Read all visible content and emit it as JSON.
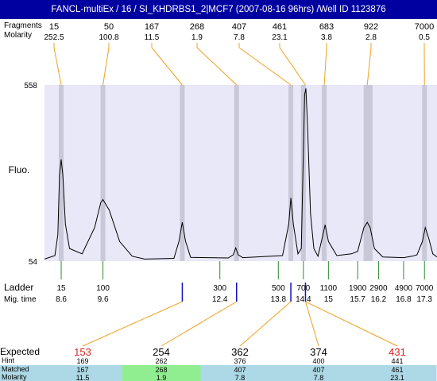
{
  "window": {
    "title": "FANCL-multiEx / 16 / SI_KHDRBS1_2|MCF7 (2007-08-16 96hrs) /Well ID 1123876"
  },
  "colors": {
    "title_bar": "#0000a0",
    "plot_bg": "#e8e8f8",
    "band": "#c8c8d8",
    "orange_line": "#f0a020",
    "green_tick": "#2e8b2e",
    "blue_tick": "#1010c0",
    "expected_highlight": "#e02020",
    "row_blue": "#add8e6",
    "row_green": "#90ee90"
  },
  "chart_data": {
    "type": "line",
    "ylabel": "Fluo.",
    "ylim": [
      54,
      558
    ],
    "y_ticks": [
      "558",
      "54"
    ],
    "top_header": {
      "row_labels": [
        "Fragments",
        "Molarity"
      ],
      "fragments": [
        "15",
        "50",
        "167",
        "268",
        "407",
        "461",
        "683",
        "922",
        "7000"
      ],
      "molarity": [
        "252.5",
        "100.8",
        "11.5",
        "1.9",
        "7.8",
        "23.1",
        "3.8",
        "2.8",
        "0.5"
      ]
    },
    "peaks_mig_time": [
      8.6,
      9.6,
      11.5,
      12.8,
      14.1,
      14.4,
      14.9,
      15.9,
      16.0,
      17.3
    ],
    "trace": [
      [
        8.2,
        60
      ],
      [
        8.45,
        70
      ],
      [
        8.52,
        130
      ],
      [
        8.56,
        300
      ],
      [
        8.6,
        345
      ],
      [
        8.64,
        300
      ],
      [
        8.7,
        160
      ],
      [
        8.8,
        90
      ],
      [
        9.1,
        75
      ],
      [
        9.4,
        150
      ],
      [
        9.55,
        222
      ],
      [
        9.6,
        230
      ],
      [
        9.75,
        200
      ],
      [
        10.0,
        110
      ],
      [
        10.3,
        68
      ],
      [
        10.6,
        60
      ],
      [
        11.3,
        62
      ],
      [
        11.42,
        110
      ],
      [
        11.5,
        165
      ],
      [
        11.58,
        110
      ],
      [
        11.7,
        65
      ],
      [
        12.6,
        63
      ],
      [
        12.72,
        72
      ],
      [
        12.78,
        92
      ],
      [
        12.84,
        72
      ],
      [
        12.95,
        64
      ],
      [
        13.9,
        70
      ],
      [
        14.05,
        160
      ],
      [
        14.1,
        235
      ],
      [
        14.16,
        160
      ],
      [
        14.27,
        75
      ],
      [
        14.35,
        90
      ],
      [
        14.43,
        530
      ],
      [
        14.46,
        548
      ],
      [
        14.5,
        440
      ],
      [
        14.57,
        190
      ],
      [
        14.65,
        90
      ],
      [
        14.75,
        68
      ],
      [
        14.85,
        120
      ],
      [
        14.92,
        158
      ],
      [
        15.0,
        110
      ],
      [
        15.2,
        70
      ],
      [
        15.55,
        75
      ],
      [
        15.7,
        82
      ],
      [
        15.85,
        150
      ],
      [
        15.93,
        165
      ],
      [
        16.0,
        150
      ],
      [
        16.1,
        90
      ],
      [
        16.3,
        66
      ],
      [
        16.8,
        64
      ],
      [
        17.0,
        68
      ],
      [
        17.12,
        72
      ],
      [
        17.25,
        110
      ],
      [
        17.32,
        150
      ],
      [
        17.4,
        120
      ],
      [
        17.5,
        75
      ],
      [
        17.6,
        66
      ]
    ],
    "ladder": {
      "row_labels": [
        "Ladder",
        "Mig. time"
      ],
      "sizes": [
        "15",
        "100",
        "300",
        "500",
        "700",
        "1100",
        "1900",
        "2900",
        "4900",
        "7000"
      ],
      "mig_times": [
        "8.6",
        "9.6",
        "12.4",
        "13.8",
        "14.4",
        "15",
        "15.7",
        "16.2",
        "16.8",
        "17.3"
      ]
    },
    "bottom_table": {
      "row_labels": [
        "Expected",
        "Hint",
        "Matched",
        "Molarity"
      ],
      "columns": [
        {
          "expected": "153",
          "highlight": true,
          "hint": "169",
          "matched": "167",
          "molarity": "11.5",
          "cell": "blue"
        },
        {
          "expected": "254",
          "highlight": false,
          "hint": "262",
          "matched": "268",
          "molarity": "1.9",
          "cell": "green"
        },
        {
          "expected": "362",
          "highlight": false,
          "hint": "376",
          "matched": "407",
          "molarity": "7.8",
          "cell": "blue"
        },
        {
          "expected": "374",
          "highlight": false,
          "hint": "400",
          "matched": "407",
          "molarity": "7.8",
          "cell": "blue"
        },
        {
          "expected": "431",
          "highlight": true,
          "hint": "441",
          "matched": "461",
          "molarity": "23.1",
          "cell": "blue"
        }
      ]
    }
  }
}
